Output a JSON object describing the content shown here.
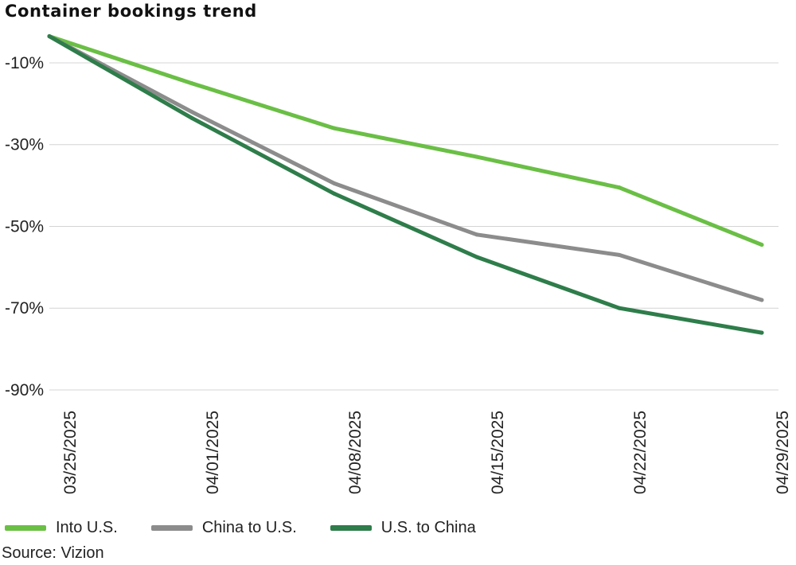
{
  "chart_data": {
    "type": "line",
    "title": "Container bookings trend",
    "xlabel": "",
    "ylabel": "",
    "x": [
      "03/25/2025",
      "04/01/2025",
      "04/08/2025",
      "04/15/2025",
      "04/22/2025",
      "04/29/2025"
    ],
    "ylim": [
      -90,
      -3
    ],
    "yticks": [
      -10,
      -30,
      -50,
      -70,
      -90
    ],
    "ytick_labels": [
      "-10%",
      "-30%",
      "-50%",
      "-70%",
      "-90%"
    ],
    "grid": "horizontal",
    "legend_position": "bottom",
    "series": [
      {
        "name": "Into U.S.",
        "color": "#6abf45",
        "values": [
          -3.5,
          -15,
          -26,
          -33,
          -40.5,
          -54.5
        ]
      },
      {
        "name": "China to U.S.",
        "color": "#8c8c8c",
        "values": [
          -3.5,
          -22,
          -39.5,
          -52,
          -57,
          -68
        ]
      },
      {
        "name": "U.S. to China",
        "color": "#2e7d4a",
        "values": [
          -3.5,
          -23.5,
          -42,
          -57.5,
          -70,
          -76
        ]
      }
    ],
    "source": "Source:  Vizion"
  }
}
